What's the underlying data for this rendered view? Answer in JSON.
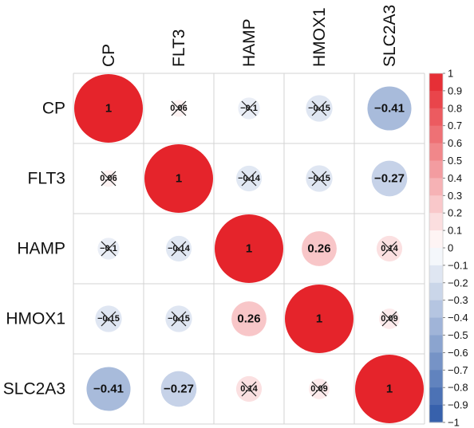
{
  "chart_data": {
    "type": "heatmap",
    "variables": [
      "CP",
      "FLT3",
      "HAMP",
      "HMOX1",
      "SLC2A3"
    ],
    "matrix": [
      [
        1,
        0.06,
        -0.1,
        -0.15,
        -0.41
      ],
      [
        0.06,
        1,
        -0.14,
        -0.15,
        -0.27
      ],
      [
        -0.1,
        -0.14,
        1,
        0.26,
        0.14
      ],
      [
        -0.15,
        -0.15,
        0.26,
        1,
        0.09
      ],
      [
        -0.41,
        -0.27,
        0.14,
        0.09,
        1
      ]
    ],
    "cell_labels": [
      [
        "1",
        "0.06",
        "-0.1",
        "-0.15",
        "-0.41"
      ],
      [
        "0.06",
        "1",
        "-0.14",
        "-0.15",
        "-0.27"
      ],
      [
        "-0.1",
        "-0.14",
        "1",
        "0.26",
        "0.14"
      ],
      [
        "-0.15",
        "-0.15",
        "0.26",
        "1",
        "0.09"
      ],
      [
        "-0.41",
        "-0.27",
        "0.14",
        "0.09",
        "1"
      ]
    ],
    "not_significant": [
      [
        false,
        true,
        true,
        true,
        false
      ],
      [
        true,
        false,
        true,
        true,
        false
      ],
      [
        true,
        true,
        false,
        false,
        true
      ],
      [
        true,
        true,
        false,
        false,
        true
      ],
      [
        false,
        false,
        true,
        true,
        false
      ]
    ],
    "colorbar": {
      "ticks": [
        "1",
        "0.9",
        "0.8",
        "0.7",
        "0.6",
        "0.5",
        "0.4",
        "0.3",
        "0.2",
        "0.1",
        "0",
        "−0.1",
        "−0.2",
        "−0.3",
        "−0.4",
        "−0.5",
        "−0.6",
        "−0.7",
        "−0.8",
        "−0.9",
        "−1"
      ],
      "range": [
        -1,
        1
      ]
    },
    "colors": {
      "negative": "#2c59a8",
      "positive": "#e5242b",
      "neutral": "#ffffff",
      "grid": "#d3d3d3"
    }
  }
}
